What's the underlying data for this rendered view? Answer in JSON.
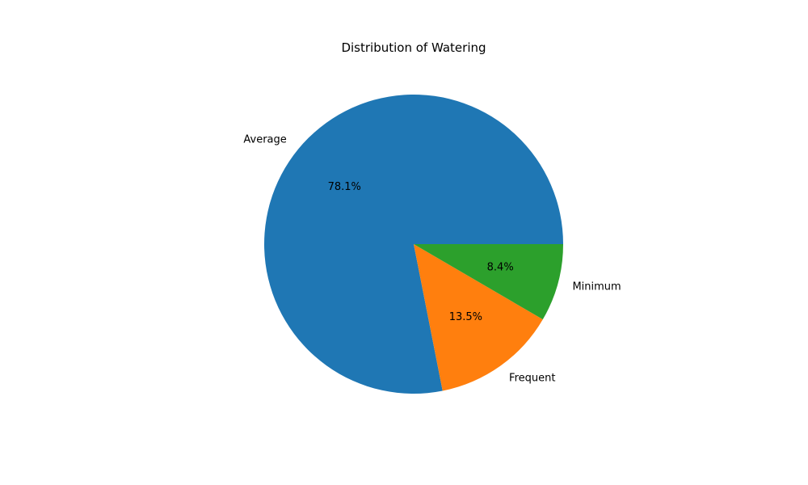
{
  "chart_data": {
    "type": "pie",
    "title": "Distribution of Watering",
    "categories": [
      "Average",
      "Frequent",
      "Minimum"
    ],
    "values": [
      78.1,
      13.5,
      8.4
    ],
    "percent_labels": [
      "78.1%",
      "13.5%",
      "8.4%"
    ],
    "colors": [
      "#1f77b4",
      "#ff7f0e",
      "#2ca02c"
    ],
    "start_angle_deg": 0,
    "direction": "counterclockwise",
    "legend": "none"
  }
}
